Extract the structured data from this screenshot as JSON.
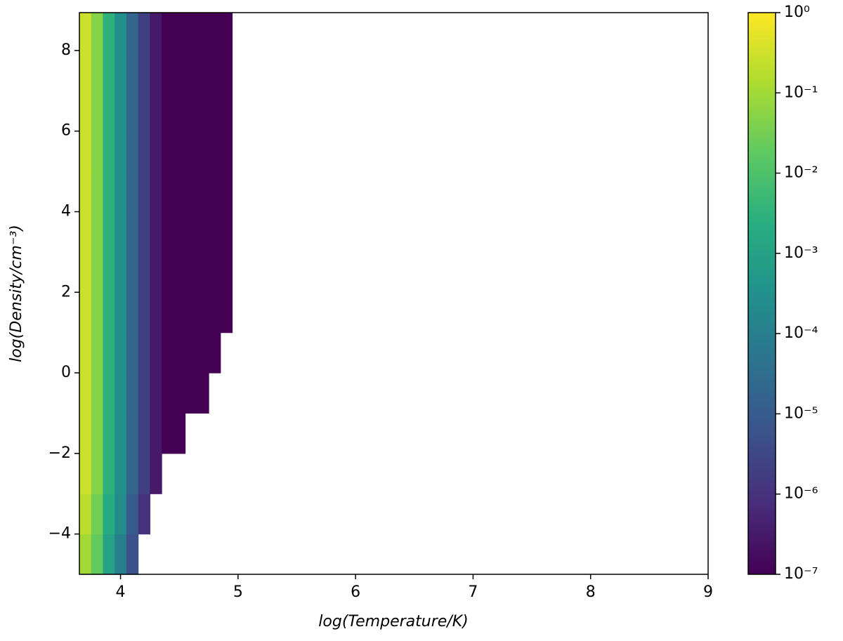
{
  "chart_data": {
    "type": "heatmap",
    "x_label": "log(Temperature/K)",
    "y_label": "log(Density/cm⁻³)",
    "xlim": [
      3.65,
      9
    ],
    "ylim": [
      -5,
      8.94
    ],
    "xticks": [
      4,
      5,
      6,
      7,
      8,
      9
    ],
    "yticks": [
      {
        "value": -4,
        "label": "−4"
      },
      {
        "value": -2,
        "label": "−2"
      },
      0,
      2,
      4,
      6,
      8
    ],
    "x_edges": [
      3.65,
      3.75,
      3.85,
      3.95,
      4.05,
      4.15,
      4.25,
      4.35,
      4.45,
      4.55,
      4.65,
      4.75,
      4.85,
      4.95
    ],
    "y_edges": [
      -5,
      -4,
      -3,
      -2,
      -1,
      0,
      1,
      2,
      3,
      4,
      5,
      6,
      7,
      8,
      8.94
    ],
    "values": [
      [
        0.1,
        0.02,
        0.001,
        0.0001,
        5e-06,
        null,
        null,
        null,
        null,
        null,
        null,
        null,
        null
      ],
      [
        0.2,
        0.03,
        0.002,
        0.0002,
        1e-05,
        1e-06,
        null,
        null,
        null,
        null,
        null,
        null,
        null
      ],
      [
        0.3,
        0.05,
        0.003,
        0.0003,
        2e-05,
        2e-06,
        3e-07,
        null,
        null,
        null,
        null,
        null,
        null
      ],
      [
        0.3,
        0.05,
        0.003,
        0.0003,
        2e-05,
        2e-06,
        3e-07,
        1e-07,
        1e-07,
        null,
        null,
        null,
        null
      ],
      [
        0.3,
        0.05,
        0.003,
        0.0003,
        2e-05,
        2e-06,
        3e-07,
        1e-07,
        1e-07,
        1e-07,
        1e-07,
        null,
        null
      ],
      [
        0.3,
        0.05,
        0.003,
        0.0003,
        2e-05,
        2e-06,
        3e-07,
        1e-07,
        1e-07,
        1e-07,
        1e-07,
        1e-07,
        null
      ],
      [
        0.3,
        0.05,
        0.003,
        0.0003,
        2e-05,
        2e-06,
        3e-07,
        1e-07,
        1e-07,
        1e-07,
        1e-07,
        1e-07,
        1e-07
      ],
      [
        0.3,
        0.05,
        0.003,
        0.0003,
        2e-05,
        2e-06,
        3e-07,
        1e-07,
        1e-07,
        1e-07,
        1e-07,
        1e-07,
        1e-07
      ],
      [
        0.3,
        0.05,
        0.003,
        0.0003,
        2e-05,
        2e-06,
        3e-07,
        1e-07,
        1e-07,
        1e-07,
        1e-07,
        1e-07,
        1e-07
      ],
      [
        0.3,
        0.05,
        0.003,
        0.0003,
        2e-05,
        2e-06,
        3e-07,
        1e-07,
        1e-07,
        1e-07,
        1e-07,
        1e-07,
        1e-07
      ],
      [
        0.3,
        0.05,
        0.003,
        0.0003,
        2e-05,
        2e-06,
        3e-07,
        1e-07,
        1e-07,
        1e-07,
        1e-07,
        1e-07,
        1e-07
      ],
      [
        0.3,
        0.05,
        0.003,
        0.0003,
        2e-05,
        2e-06,
        3e-07,
        1e-07,
        1e-07,
        1e-07,
        1e-07,
        1e-07,
        1e-07
      ],
      [
        0.3,
        0.05,
        0.003,
        0.0003,
        2e-05,
        2e-06,
        3e-07,
        1e-07,
        1e-07,
        1e-07,
        1e-07,
        1e-07,
        1e-07
      ],
      [
        0.3,
        0.05,
        0.003,
        0.0003,
        2e-05,
        2e-06,
        3e-07,
        1e-07,
        1e-07,
        1e-07,
        1e-07,
        1e-07,
        1e-07
      ]
    ],
    "colormap": "viridis",
    "zscale": "log",
    "zlim": [
      1e-07,
      1
    ],
    "zticks": [
      {
        "value": 1e-07,
        "label": "10⁻⁷"
      },
      {
        "value": 1e-06,
        "label": "10⁻⁶"
      },
      {
        "value": 1e-05,
        "label": "10⁻⁵"
      },
      {
        "value": 0.0001,
        "label": "10⁻⁴"
      },
      {
        "value": 0.001,
        "label": "10⁻³"
      },
      {
        "value": 0.01,
        "label": "10⁻²"
      },
      {
        "value": 0.1,
        "label": "10⁻¹"
      },
      {
        "value": 1,
        "label": "10⁰"
      }
    ]
  }
}
